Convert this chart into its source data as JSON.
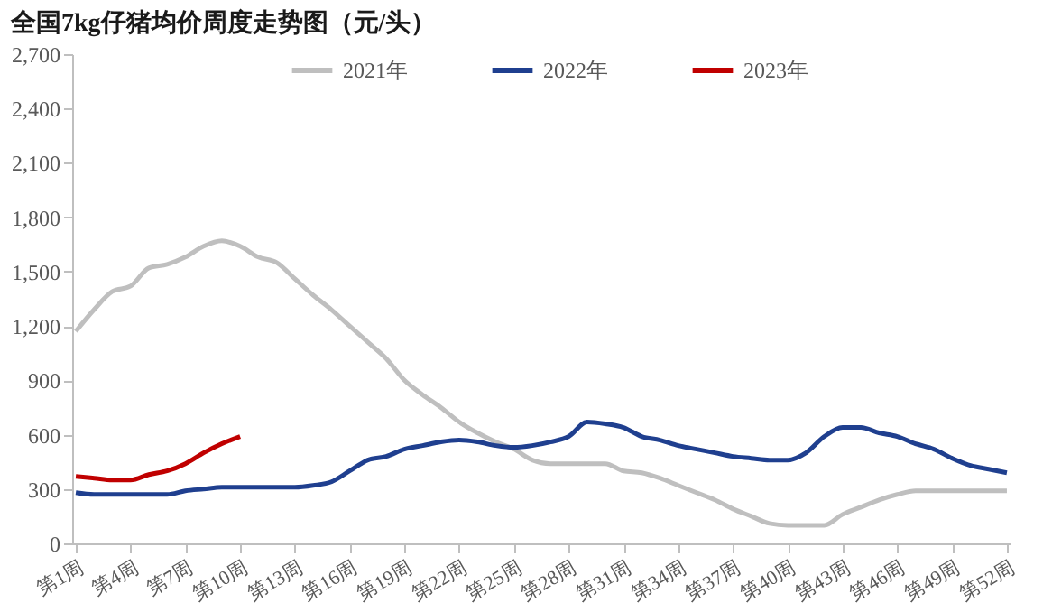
{
  "chart_data": {
    "type": "line",
    "title": "全国7kg仔猪均价周度走势图（元/头）",
    "categories": [
      "第1周",
      null,
      null,
      "第4周",
      null,
      null,
      "第7周",
      null,
      null,
      "第10周",
      null,
      null,
      "第13周",
      null,
      null,
      "第16周",
      null,
      null,
      "第19周",
      null,
      null,
      "第22周",
      null,
      null,
      "第25周",
      null,
      null,
      "第28周",
      null,
      null,
      "第31周",
      null,
      null,
      "第34周",
      null,
      null,
      "第37周",
      null,
      null,
      "第40周",
      null,
      null,
      "第43周",
      null,
      null,
      "第46周",
      null,
      null,
      "第49周",
      null,
      null,
      "第52周"
    ],
    "series": [
      {
        "name": "2021年",
        "color": "#bfbfbf",
        "values": [
          1170,
          1290,
          1390,
          1420,
          1520,
          1540,
          1580,
          1640,
          1670,
          1640,
          1580,
          1550,
          1460,
          1370,
          1290,
          1200,
          1110,
          1020,
          900,
          820,
          750,
          670,
          610,
          560,
          520,
          460,
          440,
          440,
          440,
          440,
          400,
          390,
          360,
          320,
          280,
          240,
          190,
          150,
          110,
          100,
          100,
          100,
          160,
          200,
          240,
          270,
          290,
          290,
          290,
          290,
          290,
          290
        ]
      },
      {
        "name": "2022年",
        "color": "#1f3f8f",
        "values": [
          280,
          270,
          270,
          270,
          270,
          270,
          290,
          300,
          310,
          310,
          310,
          310,
          310,
          320,
          340,
          400,
          460,
          480,
          520,
          540,
          560,
          570,
          560,
          540,
          530,
          540,
          560,
          590,
          670,
          660,
          640,
          590,
          570,
          540,
          520,
          500,
          480,
          470,
          460,
          460,
          500,
          590,
          640,
          640,
          610,
          590,
          550,
          520,
          470,
          430,
          410,
          390
        ]
      },
      {
        "name": "2023年",
        "color": "#c00000",
        "values": [
          370,
          360,
          350,
          350,
          380,
          400,
          440,
          500,
          550,
          590,
          null,
          null,
          null,
          null,
          null,
          null,
          null,
          null,
          null,
          null,
          null,
          null,
          null,
          null,
          null,
          null,
          null,
          null,
          null,
          null,
          null,
          null,
          null,
          null,
          null,
          null,
          null,
          null,
          null,
          null,
          null,
          null,
          null,
          null,
          null,
          null,
          null,
          null,
          null,
          null,
          null,
          null
        ]
      }
    ],
    "ylim": [
      0,
      2700
    ],
    "yticks": [
      0,
      300,
      600,
      900,
      {
        "value": 1200,
        "label": "1,200"
      },
      {
        "value": 1500,
        "label": "1,500"
      },
      {
        "value": 1800,
        "label": "1,800"
      },
      {
        "value": 2100,
        "label": "2,100"
      },
      {
        "value": 2400,
        "label": "2,400"
      },
      {
        "value": 2700,
        "label": "2,700"
      }
    ],
    "grid": false,
    "legend": "top",
    "marker": "none",
    "line_style": "solid"
  }
}
